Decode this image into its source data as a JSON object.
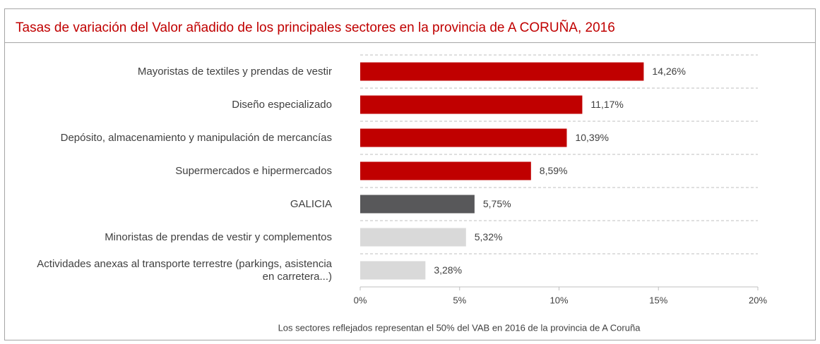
{
  "chart_data": {
    "type": "bar",
    "orientation": "horizontal",
    "title": "Tasas de variación del Valor añadido de los principales sectores en la provincia de A CORUÑA, 2016",
    "categories": [
      "Mayoristas de textiles y prendas de vestir",
      "Diseño especializado",
      "Depósito, almacenamiento y manipulación de mercancías",
      "Supermercados e hipermercados",
      "GALICIA",
      "Minoristas de prendas de vestir y complementos",
      "Actividades anexas al transporte terrestre (parkings, asistencia en carretera...)"
    ],
    "values": [
      14.26,
      11.17,
      10.39,
      8.59,
      5.75,
      5.32,
      3.28
    ],
    "value_labels": [
      "14,26%",
      "11,17%",
      "10,39%",
      "8,59%",
      "5,75%",
      "5,32%",
      "3,28%"
    ],
    "colors": [
      "#c00000",
      "#c00000",
      "#c00000",
      "#c00000",
      "#58585a",
      "#d9d9d9",
      "#d9d9d9"
    ],
    "xlim": [
      0,
      20
    ],
    "xticks": [
      {
        "value": 0,
        "label": "0%"
      },
      {
        "value": 5,
        "label": "5%"
      },
      {
        "value": 10,
        "label": "10%"
      },
      {
        "value": 15,
        "label": "15%"
      },
      {
        "value": 20,
        "label": "20%"
      }
    ],
    "note": "Los sectores reflejados representan el 50% del VAB en 2016 de la provincia de A Coruña"
  }
}
